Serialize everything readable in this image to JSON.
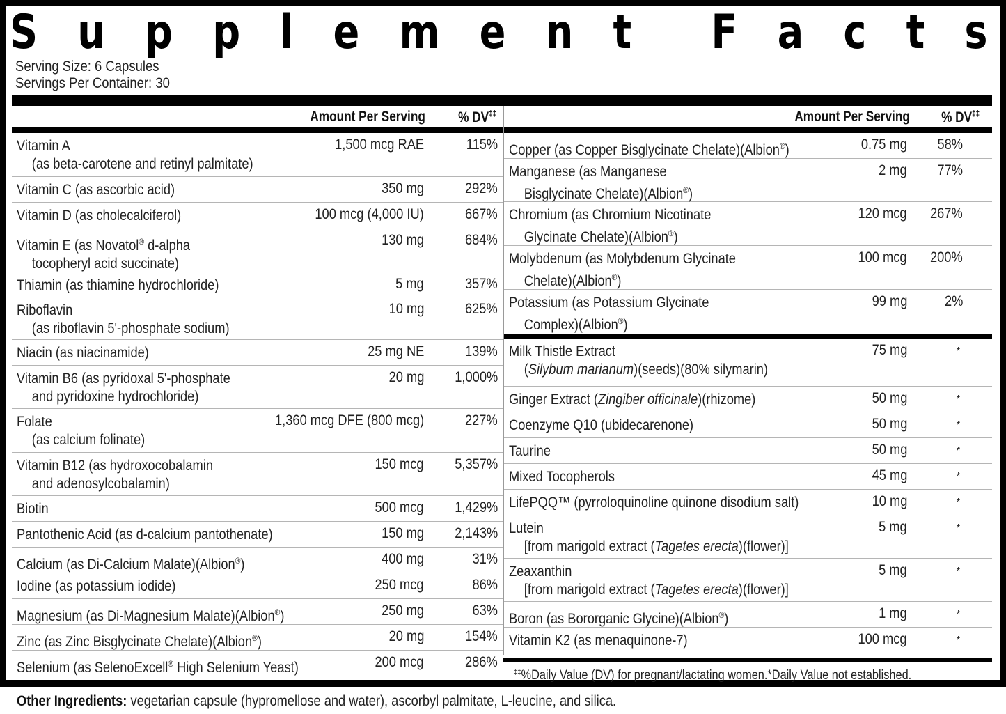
{
  "title": "Supplement Facts",
  "title_letters": [
    "S",
    "u",
    "p",
    "p",
    "l",
    "e",
    "m",
    "e",
    "n",
    "t",
    "",
    "F",
    "a",
    "c",
    "t",
    "s"
  ],
  "serving": {
    "size": "Serving Size: 6 Capsules",
    "per_container": "Servings Per Container: 30"
  },
  "headers": {
    "amount": "Amount Per Serving",
    "dv": "% DV",
    "dv_mark": "‡‡"
  },
  "left_nutrients": [
    {
      "name": "Vitamin A",
      "sub": "(as beta-carotene and retinyl palmitate)",
      "amount": "1,500 mcg RAE",
      "dv": "115%"
    },
    {
      "name": "Vitamin C (as ascorbic acid)",
      "sub": "",
      "amount": "350 mg",
      "dv": "292%"
    },
    {
      "name": "Vitamin D (as cholecalciferol)",
      "sub": "",
      "amount": "100 mcg (4,000 IU)",
      "dv": "667%"
    },
    {
      "name": "Vitamin E (as Novatol® d-alpha",
      "sub": "tocopheryl acid succinate)",
      "amount": "130 mg",
      "dv": "684%"
    },
    {
      "name": "Thiamin (as thiamine hydrochloride)",
      "sub": "",
      "amount": "5 mg",
      "dv": "357%"
    },
    {
      "name": "Riboflavin",
      "sub": "(as riboflavin 5'-phosphate sodium)",
      "amount": "10 mg",
      "dv": "625%"
    },
    {
      "name": "Niacin (as niacinamide)",
      "sub": "",
      "amount": "25 mg NE",
      "dv": "139%"
    },
    {
      "name": "Vitamin B6 (as pyridoxal 5'-phosphate",
      "sub": "and pyridoxine hydrochloride)",
      "amount": "20 mg",
      "dv": "1,000%"
    },
    {
      "name": "Folate",
      "sub": "(as calcium folinate)",
      "amount": "1,360 mcg DFE (800 mcg)",
      "dv": "227%"
    },
    {
      "name": "Vitamin B12 (as hydroxocobalamin",
      "sub": "and adenosylcobalamin)",
      "amount": "150 mcg",
      "dv": "5,357%"
    },
    {
      "name": "Biotin",
      "sub": "",
      "amount": "500 mcg",
      "dv": "1,429%"
    },
    {
      "name": "Pantothenic Acid (as d-calcium pantothenate)",
      "sub": "",
      "amount": "150 mg",
      "dv": "2,143%"
    },
    {
      "name": "Calcium (as Di-Calcium Malate)(Albion®)",
      "sub": "",
      "amount": "400 mg",
      "dv": "31%"
    },
    {
      "name": "Iodine (as potassium iodide)",
      "sub": "",
      "amount": "250 mcg",
      "dv": "86%"
    },
    {
      "name": "Magnesium (as Di-Magnesium Malate)(Albion®)",
      "sub": "",
      "amount": "250 mg",
      "dv": "63%"
    },
    {
      "name": "Zinc (as Zinc Bisglycinate Chelate)(Albion®)",
      "sub": "",
      "amount": "20 mg",
      "dv": "154%"
    },
    {
      "name": "Selenium (as SelenoExcell® High Selenium Yeast)",
      "sub": "",
      "amount": "200 mcg",
      "dv": "286%"
    }
  ],
  "right_minerals": [
    {
      "name": "Copper (as Copper Bisglycinate Chelate)(Albion®)",
      "sub": "",
      "amount": "0.75 mg",
      "dv": "58%"
    },
    {
      "name": "Manganese (as Manganese",
      "sub": "Bisglycinate Chelate)(Albion®)",
      "amount": "2 mg",
      "dv": "77%"
    },
    {
      "name": "Chromium (as Chromium Nicotinate",
      "sub": "Glycinate Chelate)(Albion®)",
      "amount": "120 mcg",
      "dv": "267%"
    },
    {
      "name": "Molybdenum (as Molybdenum Glycinate",
      "sub": "Chelate)(Albion®)",
      "amount": "100 mcg",
      "dv": "200%"
    },
    {
      "name": "Potassium (as Potassium Glycinate",
      "sub": "Complex)(Albion®)",
      "amount": "99 mg",
      "dv": "2%"
    }
  ],
  "right_other": [
    {
      "name": "Milk Thistle Extract",
      "sub_pre": "(",
      "sub_italic": "Silybum marianum",
      "sub_post": ")(seeds)(80% silymarin)",
      "amount": "75 mg",
      "dv": "*"
    },
    {
      "name_pre": "Ginger Extract (",
      "name_italic": "Zingiber officinale",
      "name_post": ")(rhizome)",
      "amount": "50 mg",
      "dv": "*"
    },
    {
      "name": "Coenzyme Q10 (ubidecarenone)",
      "amount": "50 mg",
      "dv": "*"
    },
    {
      "name": "Taurine",
      "amount": "50 mg",
      "dv": "*"
    },
    {
      "name": "Mixed Tocopherols",
      "amount": "45 mg",
      "dv": "*"
    },
    {
      "name": "LifePQQ™ (pyrroloquinoline quinone disodium salt)",
      "amount": "10 mg",
      "dv": "*"
    },
    {
      "name": "Lutein",
      "sub_pre": "[from marigold extract (",
      "sub_italic": "Tagetes erecta",
      "sub_post": ")(flower)]",
      "amount": "5 mg",
      "dv": "*"
    },
    {
      "name": "Zeaxanthin",
      "sub_pre": "[from marigold extract (",
      "sub_italic": "Tagetes erecta",
      "sub_post": ")(flower)]",
      "amount": "5 mg",
      "dv": "*"
    },
    {
      "name": "Boron (as Bororganic Glycine)(Albion®)",
      "amount": "1 mg",
      "dv": "*"
    },
    {
      "name": "Vitamin K2 (as menaquinone-7)",
      "amount": "100 mcg",
      "dv": "*"
    }
  ],
  "footnote": {
    "mark": "‡‡",
    "text": "%Daily Value (DV) for pregnant/lactating women.*Daily Value not established."
  },
  "other_ingredients": {
    "label": "Other Ingredients:",
    "text": " vegetarian capsule (hypromellose and water), ascorbyl palmitate, L-leucine, and silica."
  }
}
